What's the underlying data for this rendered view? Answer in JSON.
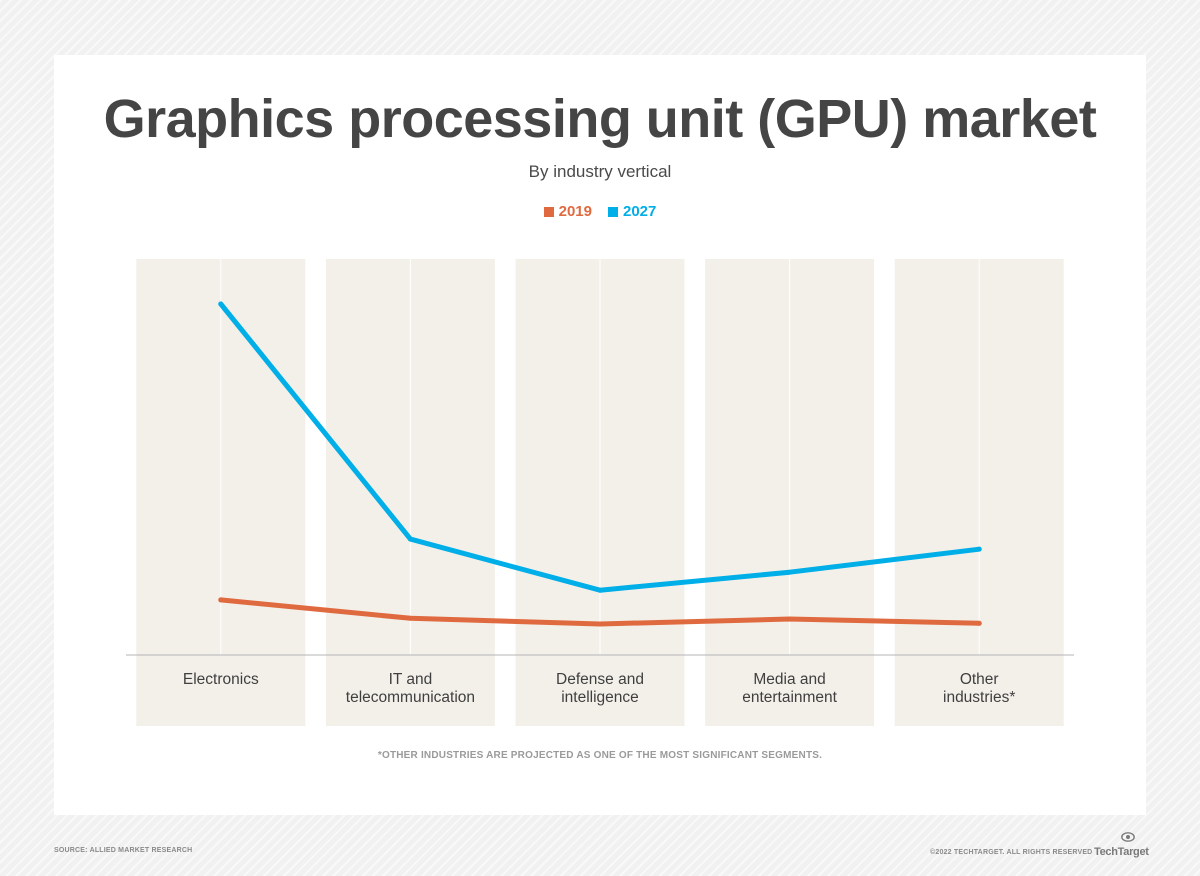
{
  "colors": {
    "series_2019": "#e06a3f",
    "series_2027": "#00aee8",
    "band": "#f3f0ea",
    "axis": "#b5b5b5"
  },
  "chart_data": {
    "type": "line",
    "title": "Graphics processing unit (GPU) market",
    "subtitle": "By industry vertical",
    "categories": [
      "Electronics",
      "IT and telecommunication",
      "Defense and intelligence",
      "Media and entertainment",
      "Other industries*"
    ],
    "category_lines": [
      [
        "Electronics"
      ],
      [
        "IT and",
        "telecommunication"
      ],
      [
        "Defense and",
        "intelligence"
      ],
      [
        "Media and",
        "entertainment"
      ],
      [
        "Other",
        "industries*"
      ]
    ],
    "series": [
      {
        "name": "2019",
        "values": [
          15.3,
          10.2,
          8.6,
          10.0,
          8.8
        ]
      },
      {
        "name": "2027",
        "values": [
          97.5,
          32.2,
          18.0,
          23.0,
          29.4
        ]
      }
    ],
    "ylim": [
      0,
      110
    ],
    "grid": true,
    "legend_position": "top-center",
    "footnote": "*OTHER INDUSTRIES ARE PROJECTED AS ONE OF THE MOST SIGNIFICANT SEGMENTS."
  },
  "footer": {
    "source": "SOURCE: ALLIED MARKET RESEARCH",
    "copyright": "©2022 TECHTARGET. ALL RIGHTS RESERVED",
    "brand": "TechTarget"
  }
}
